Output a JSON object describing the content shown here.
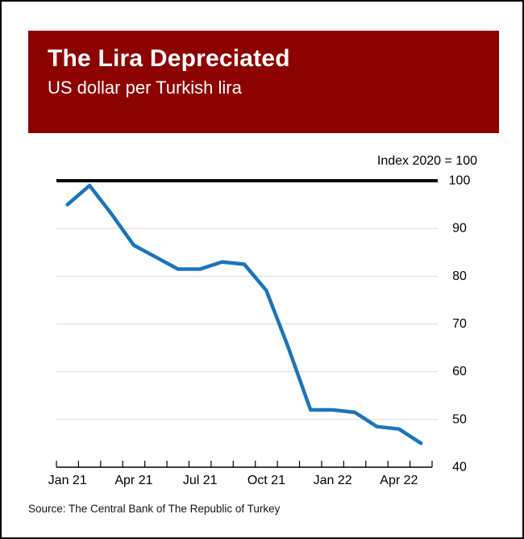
{
  "header": {
    "title": "The Lira Depreciated",
    "subtitle": "US dollar per Turkish lira",
    "bg_color": "#8d0302",
    "text_color": "#ffffff"
  },
  "chart_data": {
    "type": "line",
    "title": "The Lira Depreciated",
    "subtitle": "US dollar per Turkish lira",
    "annotation": "Index 2020 = 100",
    "x": [
      "Jan 21",
      "Feb 21",
      "Mar 21",
      "Apr 21",
      "May 21",
      "Jun 21",
      "Jul 21",
      "Aug 21",
      "Sep 21",
      "Oct 21",
      "Nov 21",
      "Dec 21",
      "Jan 22",
      "Feb 22",
      "Mar 22",
      "Apr 22",
      "May 22"
    ],
    "values": [
      95,
      99,
      93,
      86.5,
      84,
      81.5,
      81.5,
      83,
      82.5,
      77,
      65,
      52,
      52,
      51.5,
      48.5,
      48,
      45
    ],
    "x_tick_labels": [
      "Jan 21",
      "Apr 21",
      "Jul 21",
      "Oct 21",
      "Jan 22",
      "Apr 22"
    ],
    "x_tick_label_positions": [
      0,
      3,
      6,
      9,
      12,
      15
    ],
    "y_ticks": [
      40,
      50,
      60,
      70,
      80,
      90,
      100
    ],
    "ylim": [
      40,
      100
    ],
    "reference_line": {
      "value": 100,
      "label": "Index 2020 = 100"
    },
    "line_color": "#1b75bc",
    "reference_line_color": "#000000",
    "grid_color": "#d9d9d9",
    "grid": true,
    "legend": false
  },
  "source": {
    "text": "Source: The Central Bank of The Republic of Turkey"
  }
}
